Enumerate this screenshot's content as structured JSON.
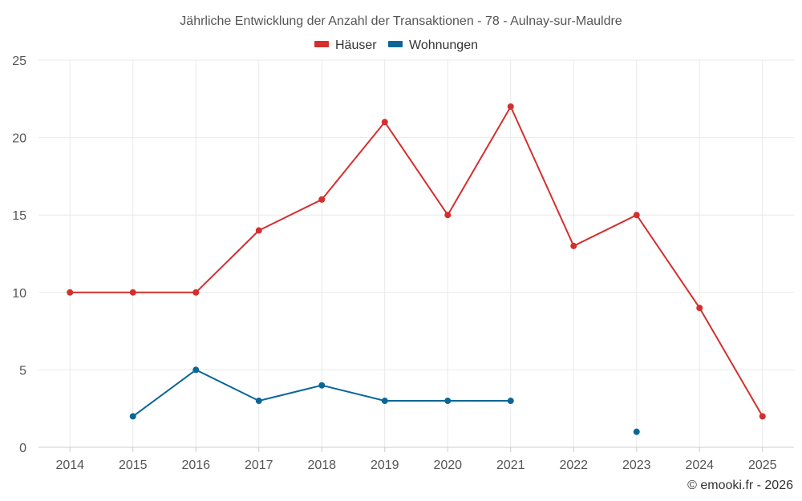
{
  "chart_data": {
    "type": "line",
    "title": "Jährliche Entwicklung der Anzahl der Transaktionen - 78 - Aulnay-sur-Mauldre",
    "xlabel": "",
    "ylabel": "",
    "categories": [
      "2014",
      "2015",
      "2016",
      "2017",
      "2018",
      "2019",
      "2020",
      "2021",
      "2022",
      "2023",
      "2024",
      "2025"
    ],
    "ylim": [
      0,
      25
    ],
    "yticks": [
      0,
      5,
      10,
      15,
      20,
      25
    ],
    "grid": true,
    "legend_position": "top-center",
    "series": [
      {
        "name": "Häuser",
        "color": "#d32f2f",
        "values": [
          10,
          10,
          10,
          14,
          16,
          21,
          15,
          22,
          13,
          15,
          9,
          2
        ]
      },
      {
        "name": "Wohnungen",
        "color": "#0a6699",
        "values": [
          null,
          2,
          5,
          3,
          4,
          3,
          3,
          3,
          null,
          1,
          null,
          null
        ]
      }
    ],
    "credit": "© emooki.fr - 2026"
  }
}
